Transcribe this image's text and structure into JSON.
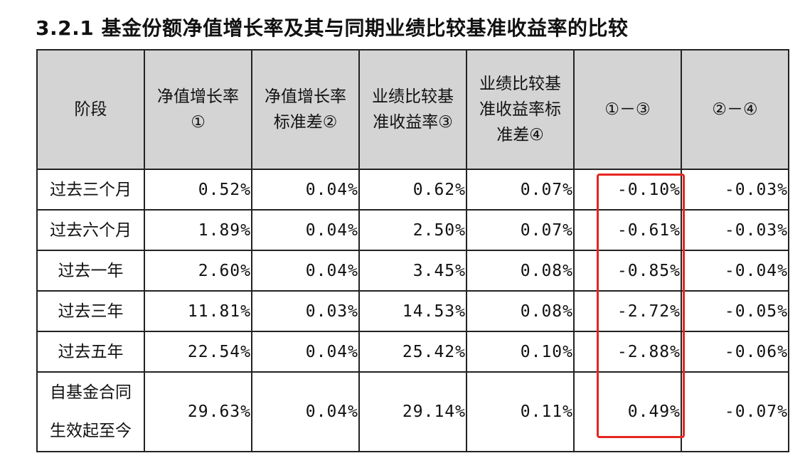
{
  "title": "3.2.1 基金份额净值增长率及其与同期业绩比较基准收益率的比较",
  "headers": [
    "阶段",
    "净值增长率\n①",
    "净值增长率\n标准差②",
    "业绩比较基\n准收益率③",
    "业绩比较基\n准收益率标\n准差④",
    "①－③",
    "②－④"
  ],
  "rows": [
    [
      "过去三个月",
      "0.52%",
      "0.04%",
      "0.62%",
      "0.07%",
      "-0.10%",
      "-0.03%"
    ],
    [
      "过去六个月",
      "1.89%",
      "0.04%",
      "2.50%",
      "0.07%",
      "-0.61%",
      "-0.03%"
    ],
    [
      "过去一年",
      "2.60%",
      "0.04%",
      "3.45%",
      "0.08%",
      "-0.85%",
      "-0.04%"
    ],
    [
      "过去三年",
      "11.81%",
      "0.03%",
      "14.53%",
      "0.08%",
      "-2.72%",
      "-0.05%"
    ],
    [
      "过去五年",
      "22.54%",
      "0.04%",
      "25.42%",
      "0.10%",
      "-2.88%",
      "-0.06%"
    ],
    [
      "自基金合同\n生效起至今",
      "29.63%",
      "0.04%",
      "29.14%",
      "0.11%",
      "0.49%",
      "-0.07%"
    ]
  ],
  "highlight_color": "#e5261f",
  "header_bg": "#d4d4d4"
}
